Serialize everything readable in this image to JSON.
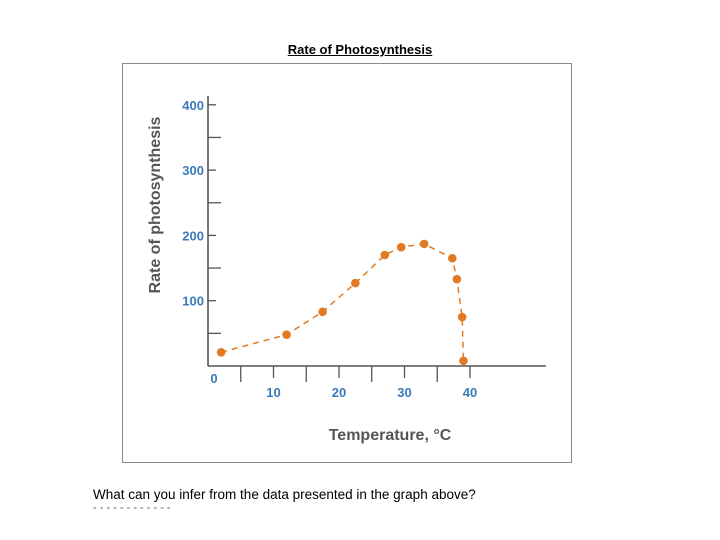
{
  "page": {
    "title": "Rate of Photosynthesis",
    "question": "What can you infer from the data presented in the graph above?"
  },
  "chart_data": {
    "type": "scatter",
    "title": "Rate of Photosynthesis",
    "xlabel": "Temperature, °C",
    "ylabel": "Rate of photosynthesis",
    "x_ticks": [
      0,
      10,
      20,
      30,
      40
    ],
    "x_tick_labels": [
      "10",
      "20",
      "30",
      "40"
    ],
    "y_ticks": [
      100,
      200,
      300,
      400
    ],
    "y_tick_labels": [
      "100",
      "200",
      "300",
      "400"
    ],
    "origin_label": "0",
    "xlim": [
      0,
      48
    ],
    "ylim": [
      0,
      400
    ],
    "grid": false,
    "marker_color": "#e07b24",
    "line_style": "dashed",
    "series": [
      {
        "x": [
          2,
          12,
          17.5,
          22.5,
          27,
          29.5,
          33,
          37.3,
          38,
          38.8,
          39
        ],
        "values": [
          21,
          48,
          83,
          127,
          170,
          182,
          187,
          165,
          133,
          75,
          8
        ]
      }
    ]
  }
}
